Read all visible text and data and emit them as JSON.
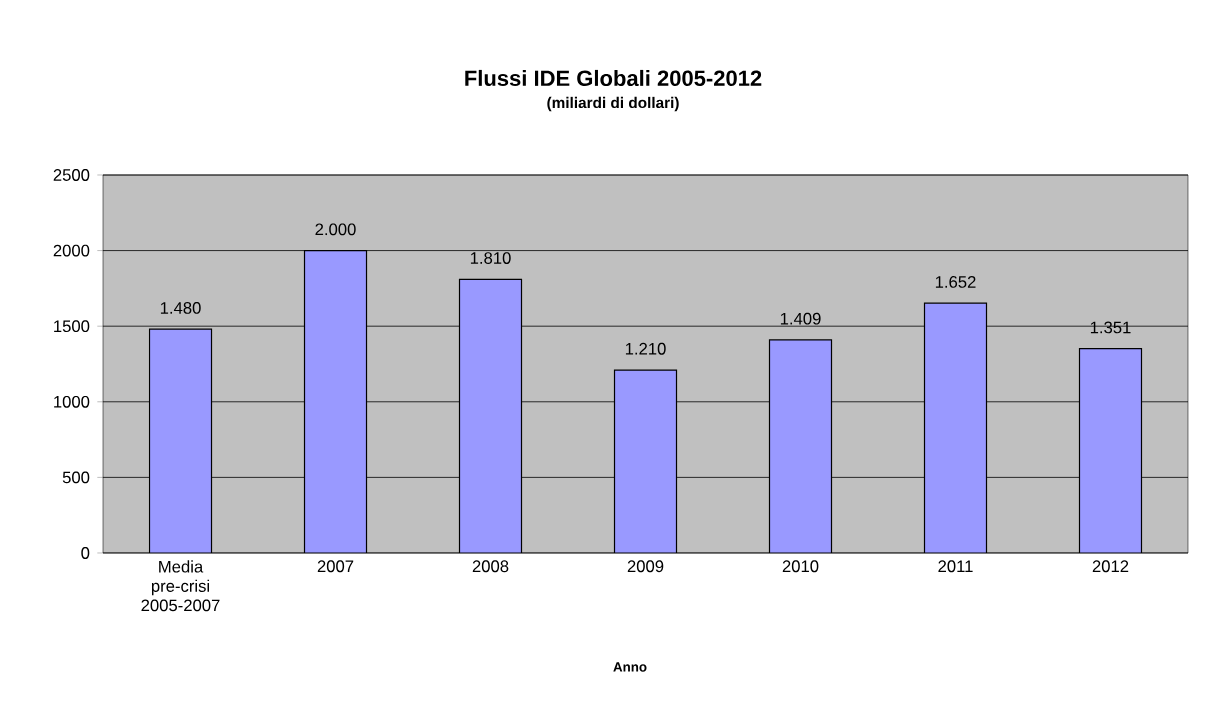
{
  "chart_data": {
    "type": "bar",
    "title": "Flussi IDE Globali 2005-2012",
    "subtitle": "(miliardi di dollari)",
    "xlabel": "Anno",
    "categories": [
      "Media pre-crisi 2005-2007",
      "2007",
      "2008",
      "2009",
      "2010",
      "2011",
      "2012"
    ],
    "values": [
      1480,
      2000,
      1810,
      1210,
      1409,
      1652,
      1351
    ],
    "value_labels": [
      "1.480",
      "2.000",
      "1.810",
      "1.210",
      "1.409",
      "1.652",
      "1.351"
    ],
    "color": "#9999ff",
    "ylim": [
      0,
      2500
    ],
    "yticks": [
      0,
      500,
      1000,
      1500,
      2000,
      2500
    ],
    "grid": "y"
  }
}
